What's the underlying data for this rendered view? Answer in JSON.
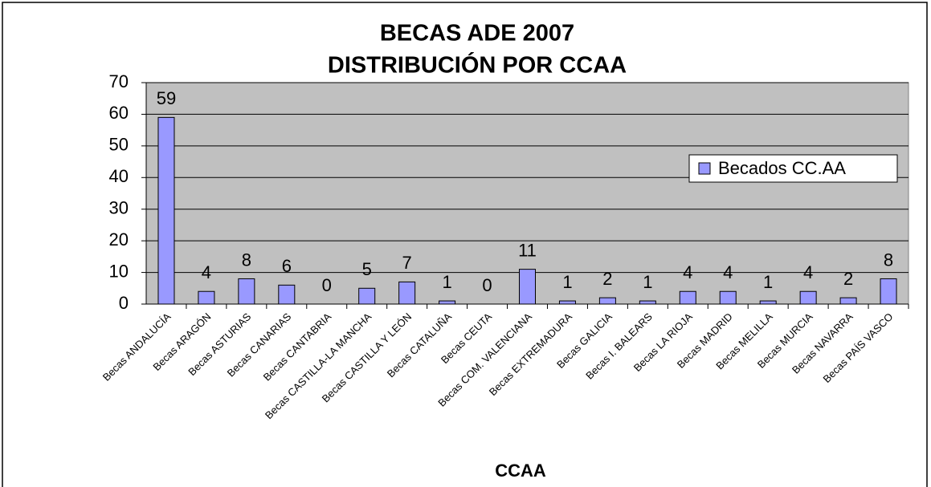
{
  "chart_data": {
    "type": "bar",
    "title": "BECAS ADE 2007",
    "subtitle": "DISTRIBUCIÓN POR CCAA",
    "x_label": "CCAA",
    "categories": [
      "Becas ANDALUCÍA",
      "Becas ARAGÓN",
      "Becas ASTURIAS",
      "Becas CANARIAS",
      "Becas CANTABRIA",
      "Becas CASTILLA-LA MANCHA",
      "Becas CASTILLA Y LEÓN",
      "Becas CATALUÑA",
      "Becas CEUTA",
      "Becas COM. VALENCIANA",
      "Becas EXTREMADURA",
      "Becas GALICIA",
      "Becas I. BALEARS",
      "Becas LA RIOJA",
      "Becas MADRID",
      "Becas MELILLA",
      "Becas MURCIA",
      "Becas NAVARRA",
      "Becas PAÍS VASCO"
    ],
    "series": [
      {
        "name": "Becados CC.AA",
        "color": "#9999ff",
        "values": [
          59,
          4,
          8,
          6,
          0,
          5,
          7,
          1,
          0,
          11,
          1,
          2,
          1,
          4,
          4,
          1,
          4,
          2,
          8
        ]
      }
    ],
    "ylim": [
      0,
      70
    ],
    "yticks": [
      0,
      10,
      20,
      30,
      40,
      50,
      60,
      70
    ],
    "grid": true,
    "legend": "right"
  }
}
